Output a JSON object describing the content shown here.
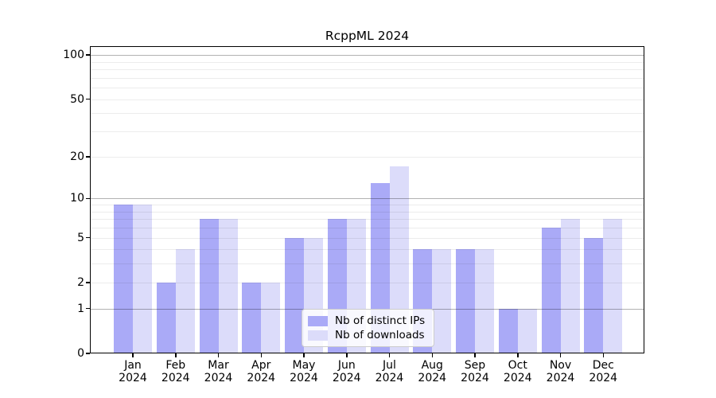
{
  "title": "RcppML 2024",
  "chart_data": {
    "type": "bar",
    "title": "RcppML 2024",
    "categories": [
      "Jan",
      "Feb",
      "Mar",
      "Apr",
      "May",
      "Jun",
      "Jul",
      "Aug",
      "Sep",
      "Oct",
      "Nov",
      "Dec"
    ],
    "category_year": "2024",
    "series": [
      {
        "name": "Nb of distinct IPs",
        "color": "#aaaaf7",
        "values": [
          9,
          2,
          7,
          2,
          5,
          7,
          13,
          4,
          4,
          1,
          6,
          5
        ]
      },
      {
        "name": "Nb of downloads",
        "color": "#dcdcfa",
        "values": [
          9,
          4,
          7,
          2,
          5,
          7,
          17,
          4,
          4,
          1,
          7,
          7
        ]
      }
    ],
    "xlabel": "",
    "ylabel": "",
    "y_scale": "log1p",
    "ylim": [
      0,
      115
    ],
    "y_tick_labels": [
      "100",
      "50",
      "20",
      "10",
      "5",
      "2",
      "1",
      "0"
    ],
    "y_tick_values": [
      100,
      50,
      20,
      10,
      5,
      2,
      1,
      0
    ],
    "y_major_gridlines": [
      1,
      10,
      100
    ],
    "y_minor_gridlines": [
      2,
      3,
      4,
      5,
      6,
      7,
      8,
      9,
      20,
      30,
      40,
      50,
      60,
      70,
      80,
      90
    ],
    "grid": true,
    "legend_position": "lower center",
    "colors": {
      "background": "#ffffff",
      "axis": "#000000",
      "major_grid": "#b3b3b3",
      "minor_grid": "#ebebeb",
      "legend_border": "#cccccc"
    }
  }
}
